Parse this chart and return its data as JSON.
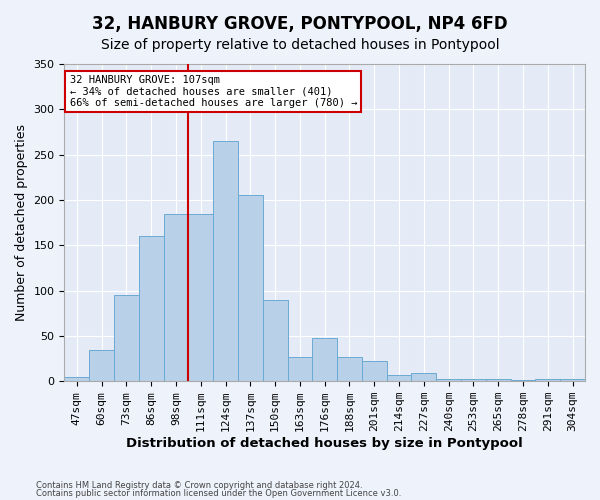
{
  "title1": "32, HANBURY GROVE, PONTYPOOL, NP4 6FD",
  "title2": "Size of property relative to detached houses in Pontypool",
  "xlabel": "Distribution of detached houses by size in Pontypool",
  "ylabel": "Number of detached properties",
  "categories": [
    "47sqm",
    "60sqm",
    "73sqm",
    "86sqm",
    "98sqm",
    "111sqm",
    "124sqm",
    "137sqm",
    "150sqm",
    "163sqm",
    "176sqm",
    "188sqm",
    "201sqm",
    "214sqm",
    "227sqm",
    "240sqm",
    "253sqm",
    "265sqm",
    "278sqm",
    "291sqm",
    "304sqm"
  ],
  "values": [
    5,
    35,
    95,
    160,
    185,
    185,
    265,
    205,
    90,
    27,
    48,
    27,
    22,
    7,
    9,
    3,
    2,
    2,
    1,
    3,
    2
  ],
  "bar_color": "#b8d0e8",
  "bar_edge_color": "#6aaad4",
  "annotation_text": "32 HANBURY GROVE: 107sqm\n← 34% of detached houses are smaller (401)\n66% of semi-detached houses are larger (780) →",
  "annotation_box_color": "#ffffff",
  "annotation_box_edge_color": "#cc0000",
  "vline_color": "#cc0000",
  "vline_x_index": 5,
  "footer1": "Contains HM Land Registry data © Crown copyright and database right 2024.",
  "footer2": "Contains public sector information licensed under the Open Government Licence v3.0.",
  "bg_color": "#eef2fb",
  "plot_bg_color": "#e4ebf7",
  "grid_color": "#ffffff",
  "ylim": [
    0,
    350
  ],
  "title1_fontsize": 12,
  "title2_fontsize": 10,
  "xlabel_fontsize": 9.5,
  "ylabel_fontsize": 9,
  "tick_fontsize": 8
}
